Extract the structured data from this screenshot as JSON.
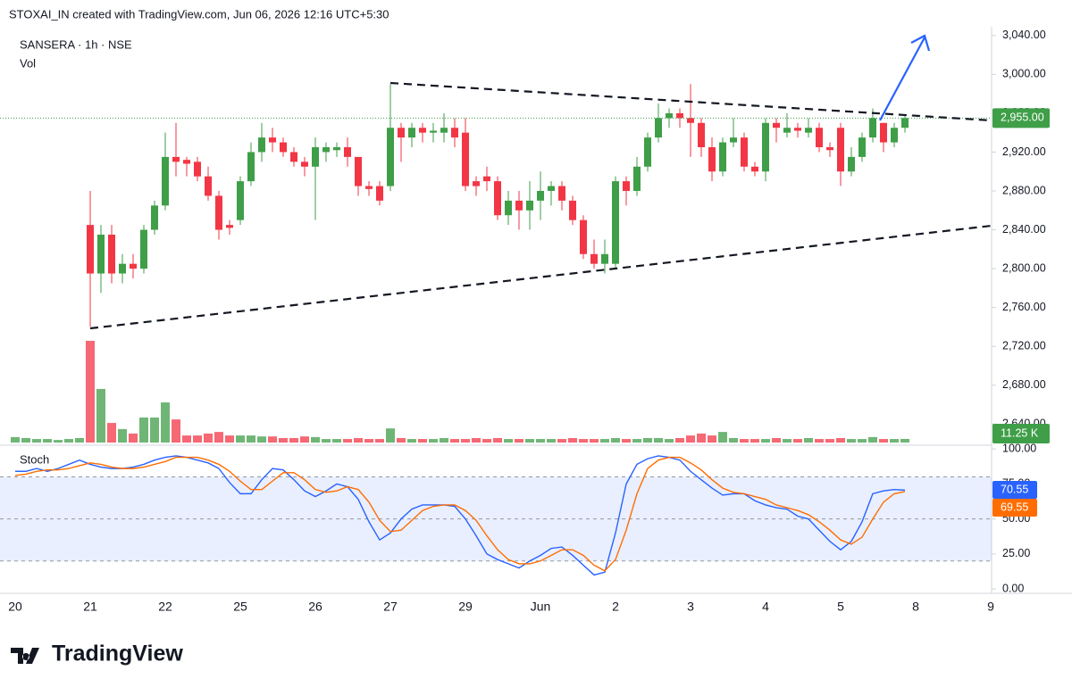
{
  "header": "STOXAI_IN created with TradingView.com, Jun 06, 2026 12:16 UTC+5:30",
  "chart_data": {
    "type": "candlestick",
    "title": "SANSERA · 1h · NSE",
    "volume_title": "Vol",
    "up_color": "#3f9e48",
    "down_color": "#f23645",
    "x_labels": [
      "20",
      "21",
      "22",
      "25",
      "26",
      "27",
      "29",
      "Jun",
      "2",
      "3",
      "4",
      "5",
      "8",
      "9"
    ],
    "open": [
      null,
      null,
      null,
      null,
      null,
      null,
      null,
      2845,
      2795,
      2835,
      2795,
      2805,
      2800,
      2840,
      2865,
      2915,
      2912,
      2910,
      2895,
      2875,
      2845,
      2850,
      2890,
      2920,
      2935,
      2930,
      2920,
      2910,
      2905,
      2920,
      2922,
      2925,
      2915,
      2885,
      2885,
      2885,
      2945,
      2935,
      2945,
      2940,
      2940,
      2945,
      2940,
      2890,
      2895,
      2890,
      2855,
      2870,
      2860,
      2870,
      2880,
      2885,
      2870,
      2850,
      2815,
      2805,
      2805,
      2890,
      2880,
      2905,
      2935,
      2955,
      2960,
      2955,
      2950,
      2925,
      2900,
      2930,
      2935,
      2905,
      2900,
      2950,
      2940,
      2945,
      2940,
      2945,
      2925,
      2945,
      2900,
      2915,
      2935,
      2950,
      2930,
      2945
    ],
    "high": [
      null,
      null,
      null,
      null,
      null,
      null,
      null,
      2880,
      2845,
      2845,
      2815,
      2815,
      2845,
      2870,
      2940,
      2950,
      2915,
      2915,
      2905,
      2880,
      2850,
      2895,
      2930,
      2950,
      2945,
      2935,
      2925,
      2915,
      2935,
      2930,
      2930,
      2935,
      2915,
      2890,
      2890,
      2990,
      2950,
      2950,
      2950,
      2950,
      2960,
      2955,
      2955,
      2895,
      2905,
      2895,
      2880,
      2880,
      2890,
      2900,
      2890,
      2890,
      2875,
      2855,
      2830,
      2830,
      2895,
      2895,
      2915,
      2940,
      2970,
      2965,
      2965,
      2990,
      2955,
      2935,
      2935,
      2955,
      2940,
      2910,
      2955,
      2955,
      2960,
      2950,
      2955,
      2950,
      2930,
      2950,
      2925,
      2940,
      2965,
      2950,
      2950,
      2958
    ],
    "low": [
      null,
      null,
      null,
      null,
      null,
      null,
      null,
      2740,
      2775,
      2785,
      2785,
      2790,
      2795,
      2835,
      2860,
      2895,
      2895,
      2890,
      2870,
      2830,
      2835,
      2845,
      2885,
      2910,
      2920,
      2915,
      2905,
      2895,
      2850,
      2910,
      2915,
      2905,
      2875,
      2875,
      2865,
      2880,
      2910,
      2925,
      2930,
      2930,
      2930,
      2925,
      2880,
      2875,
      2880,
      2850,
      2845,
      2840,
      2840,
      2850,
      2865,
      2860,
      2845,
      2810,
      2800,
      2795,
      2800,
      2865,
      2875,
      2900,
      2930,
      2945,
      2945,
      2915,
      2915,
      2890,
      2895,
      2925,
      2900,
      2895,
      2890,
      2930,
      2935,
      2935,
      2935,
      2920,
      2915,
      2885,
      2895,
      2910,
      2930,
      2920,
      2925,
      2940
    ],
    "close": [
      null,
      null,
      null,
      null,
      null,
      null,
      null,
      2795,
      2835,
      2795,
      2805,
      2800,
      2840,
      2865,
      2915,
      2910,
      2908,
      2895,
      2875,
      2840,
      2842,
      2890,
      2920,
      2935,
      2930,
      2920,
      2910,
      2905,
      2925,
      2925,
      2925,
      2915,
      2885,
      2882,
      2870,
      2945,
      2935,
      2945,
      2940,
      2942,
      2945,
      2935,
      2885,
      2885,
      2890,
      2855,
      2870,
      2860,
      2870,
      2880,
      2885,
      2870,
      2850,
      2815,
      2805,
      2815,
      2890,
      2880,
      2905,
      2935,
      2955,
      2960,
      2955,
      2950,
      2925,
      2900,
      2930,
      2935,
      2905,
      2900,
      2950,
      2945,
      2945,
      2942,
      2945,
      2925,
      2922,
      2900,
      2915,
      2935,
      2955,
      2930,
      2945,
      2955
    ],
    "last_price_label": "2,955.00",
    "volume": [
      17,
      14,
      11,
      11,
      8,
      11,
      14,
      317,
      167,
      61,
      42,
      28,
      78,
      78,
      125,
      72,
      22,
      22,
      28,
      33,
      22,
      22,
      22,
      19,
      19,
      14,
      14,
      19,
      17,
      11,
      11,
      11,
      14,
      11,
      11,
      44,
      14,
      11,
      11,
      11,
      14,
      11,
      11,
      14,
      11,
      14,
      11,
      11,
      11,
      11,
      11,
      11,
      14,
      11,
      11,
      11,
      14,
      11,
      11,
      14,
      14,
      11,
      14,
      22,
      28,
      22,
      33,
      14,
      11,
      11,
      11,
      14,
      11,
      11,
      14,
      11,
      11,
      14,
      11,
      11,
      17,
      11,
      11,
      11.25
    ],
    "last_volume_label": "11.25 K",
    "ylim": [
      2621,
      3049
    ],
    "yticks": [
      {
        "value": 2640,
        "label": "2,640.00"
      },
      {
        "value": 2680,
        "label": "2,680.00"
      },
      {
        "value": 2720,
        "label": "2,720.00"
      },
      {
        "value": 2760,
        "label": "2,760.00"
      },
      {
        "value": 2800,
        "label": "2,800.00"
      },
      {
        "value": 2840,
        "label": "2,840.00"
      },
      {
        "value": 2880,
        "label": "2,880.00"
      },
      {
        "value": 2920,
        "label": "2,920.00"
      },
      {
        "value": 2960,
        "label": "2,960.00"
      },
      {
        "value": 3000,
        "label": "3,000.00"
      },
      {
        "value": 3040,
        "label": "3,040.00"
      }
    ]
  },
  "stoch": {
    "title": "Stoch",
    "ylim": [
      -5,
      102
    ],
    "yticks": [
      {
        "value": 0,
        "label": "0.00"
      },
      {
        "value": 25,
        "label": "25.00"
      },
      {
        "value": 50,
        "label": "50.00"
      },
      {
        "value": 75,
        "label": "75.00"
      },
      {
        "value": 100,
        "label": "100.00"
      }
    ],
    "bands": [
      80,
      50,
      20
    ],
    "series": [
      {
        "name": "%K",
        "color": "#2962ff",
        "values": [
          84,
          84,
          86,
          84,
          86,
          89,
          92,
          89,
          87,
          86,
          86,
          87,
          89,
          92,
          94,
          95,
          94,
          92,
          90,
          86,
          76,
          68,
          68,
          78,
          86,
          85,
          78,
          70,
          66,
          70,
          75,
          73,
          64,
          48,
          35,
          40,
          50,
          57,
          60,
          60,
          60,
          59,
          50,
          38,
          25,
          21,
          18,
          15,
          20,
          24,
          29,
          30,
          24,
          17,
          10,
          12,
          40,
          75,
          89,
          93,
          95,
          94,
          92,
          84,
          78,
          72,
          67,
          68,
          68,
          63,
          60,
          58,
          57,
          52,
          50,
          42,
          34,
          28,
          34,
          48,
          68,
          70,
          71,
          70.55
        ],
        "value_label": "70.55"
      },
      {
        "name": "%D",
        "color": "#ff6d00",
        "values": [
          81,
          82,
          84,
          85,
          85,
          86,
          88,
          90,
          89,
          87,
          86,
          86,
          87,
          89,
          91,
          94,
          94,
          94,
          92,
          89,
          84,
          77,
          71,
          71,
          77,
          83,
          83,
          78,
          71,
          69,
          70,
          73,
          71,
          62,
          49,
          41,
          42,
          49,
          56,
          59,
          60,
          60,
          56,
          49,
          38,
          28,
          21,
          18,
          18,
          20,
          24,
          28,
          28,
          24,
          17,
          13,
          21,
          42,
          68,
          86,
          92,
          94,
          94,
          90,
          85,
          78,
          72,
          69,
          68,
          66,
          64,
          60,
          58,
          56,
          53,
          48,
          42,
          35,
          32,
          37,
          50,
          62,
          68,
          69.55
        ],
        "value_label": "69.55"
      }
    ]
  },
  "footer": "TradingView"
}
